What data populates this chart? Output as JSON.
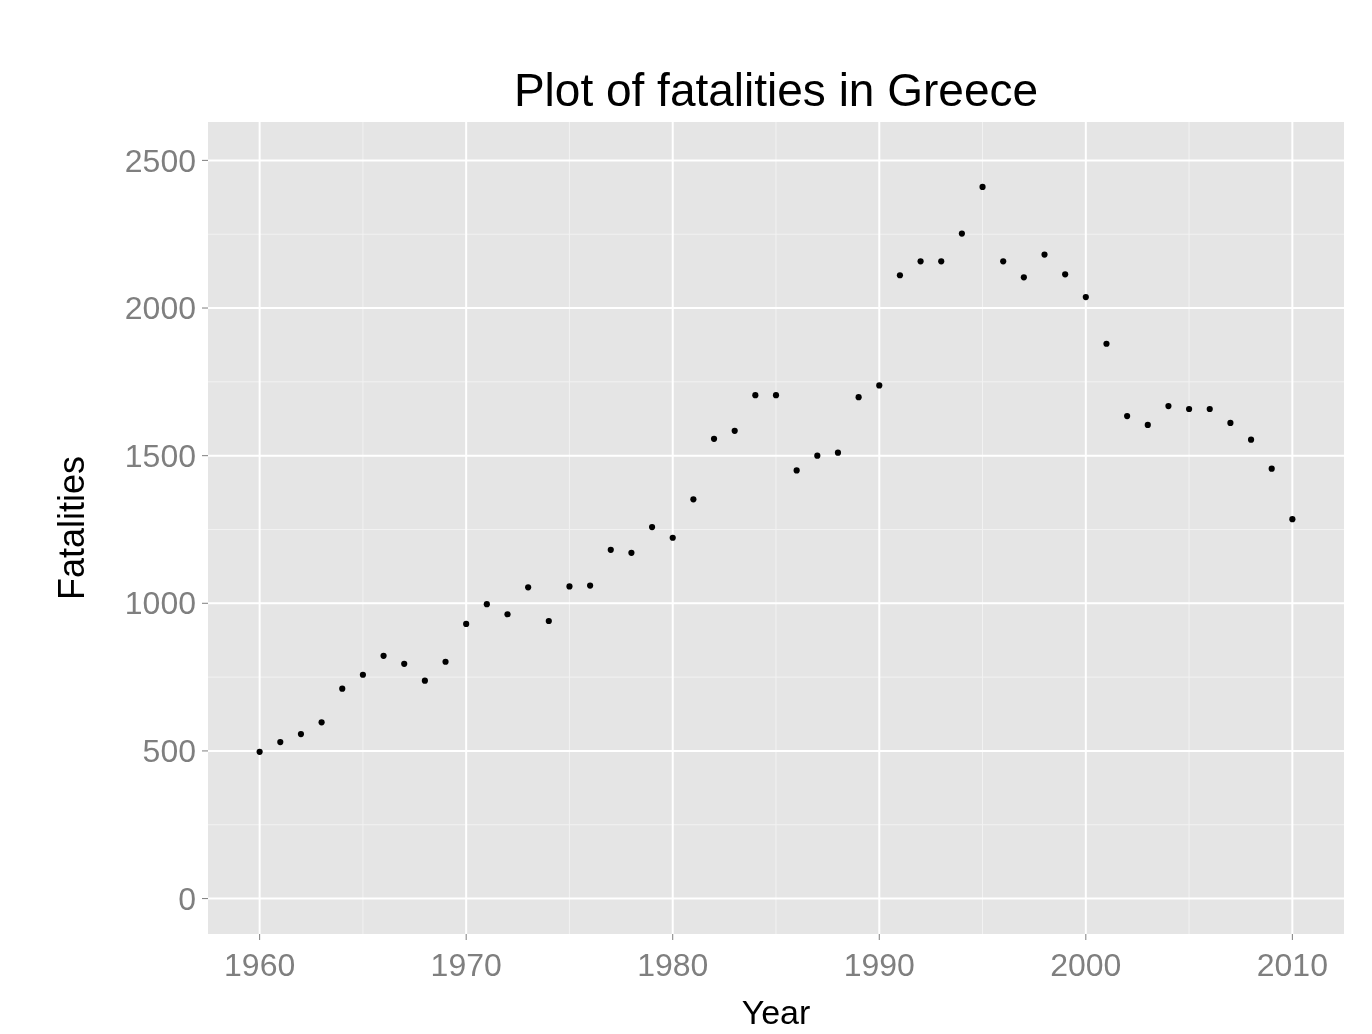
{
  "chart_data": {
    "type": "scatter",
    "title": "Plot of fatalities in Greece",
    "xlabel": "Year",
    "ylabel": "Fatalities",
    "x": [
      1960,
      1961,
      1962,
      1963,
      1964,
      1965,
      1966,
      1967,
      1968,
      1969,
      1970,
      1971,
      1972,
      1973,
      1974,
      1975,
      1976,
      1977,
      1978,
      1979,
      1980,
      1981,
      1982,
      1983,
      1984,
      1985,
      1986,
      1987,
      1988,
      1989,
      1990,
      1991,
      1992,
      1993,
      1994,
      1995,
      1996,
      1997,
      1998,
      1999,
      2000,
      2001,
      2002,
      2003,
      2004,
      2005,
      2006,
      2007,
      2008,
      2009,
      2010
    ],
    "series": [
      {
        "color": "#000000",
        "values": [
          497,
          530,
          557,
          597,
          711,
          758,
          822,
          795,
          738,
          802,
          930,
          997,
          963,
          1054,
          940,
          1057,
          1060,
          1181,
          1171,
          1258,
          1222,
          1352,
          1557,
          1584,
          1705,
          1705,
          1450,
          1500,
          1510,
          1698,
          1738,
          2111,
          2158,
          2158,
          2252,
          2410,
          2158,
          2104,
          2181,
          2114,
          2037,
          1879,
          1634,
          1604,
          1668,
          1658,
          1658,
          1611,
          1554,
          1456,
          1285
        ]
      }
    ],
    "xlim": [
      1957.5,
      2012.5
    ],
    "xticks": [
      1960,
      1970,
      1980,
      1990,
      2000,
      2010
    ],
    "ylim": [
      -120,
      2630
    ],
    "yticks": [
      0,
      500,
      1000,
      1500,
      2000,
      2500
    ],
    "grid": true,
    "marker": "circle"
  }
}
